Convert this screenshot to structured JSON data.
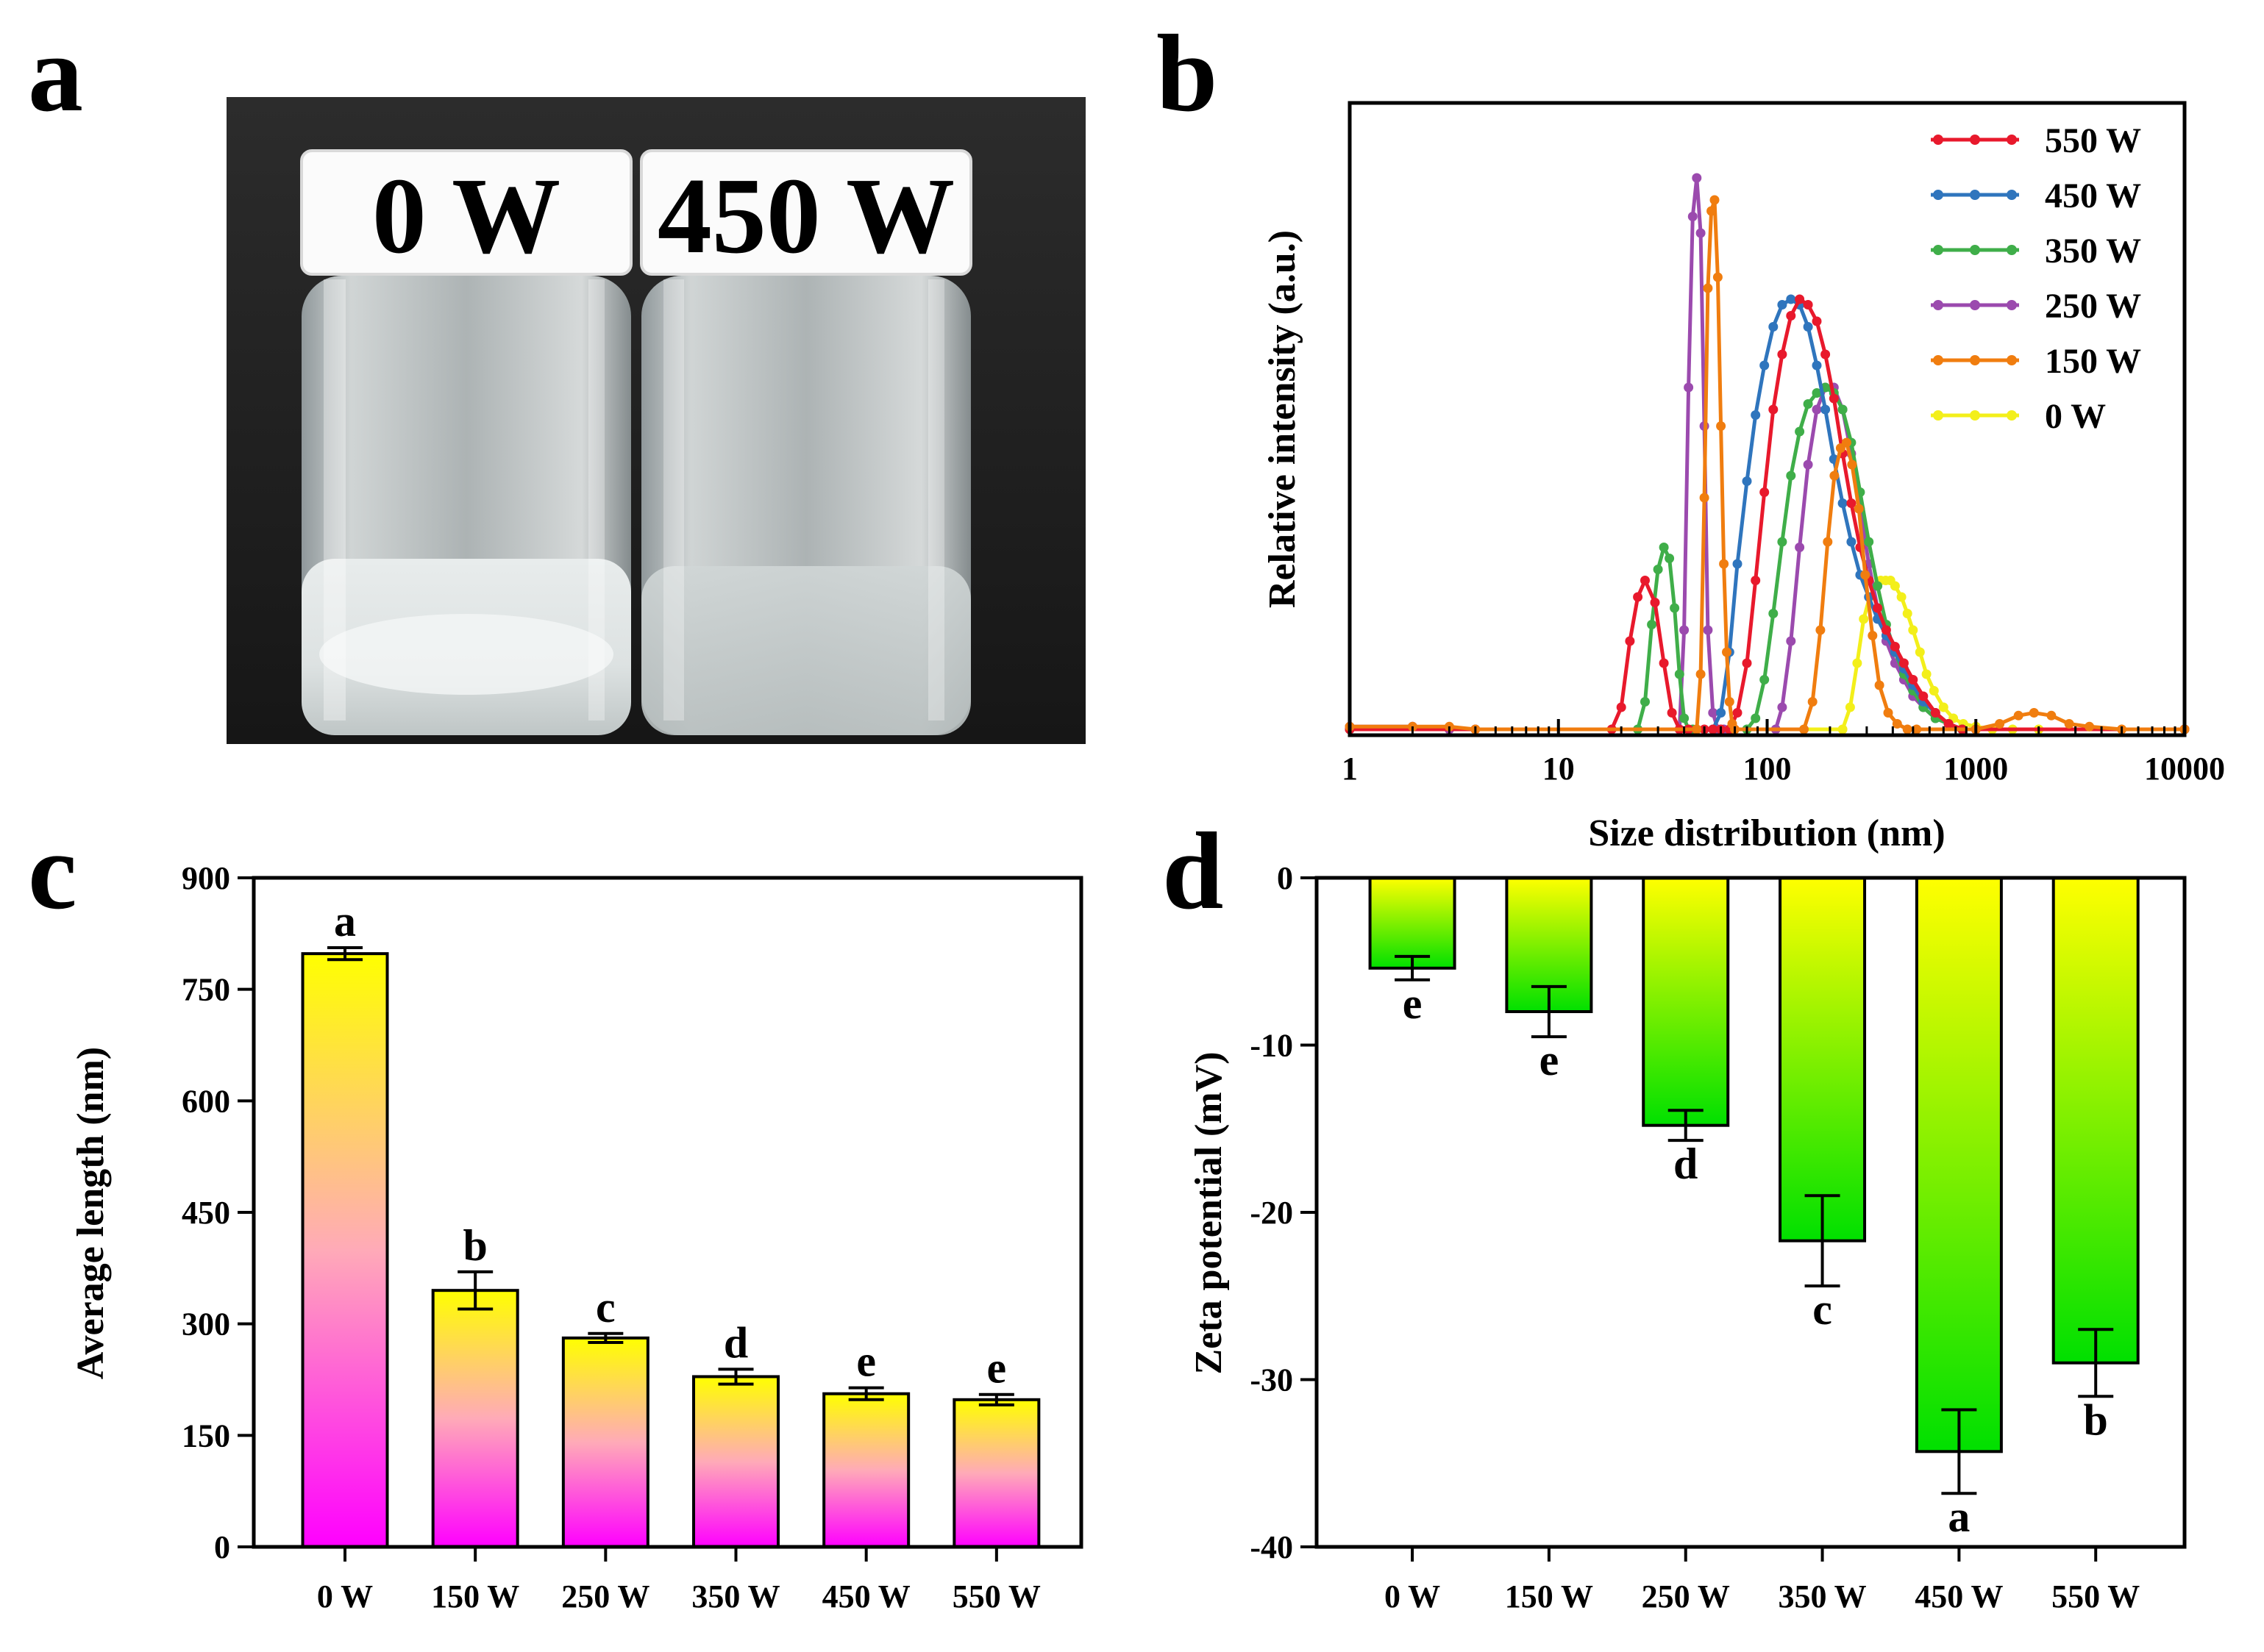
{
  "panels": [
    {
      "label": "a"
    },
    {
      "label": "b"
    },
    {
      "label": "c"
    },
    {
      "label": "d"
    }
  ],
  "photo": {
    "left_cap_label": "0 W",
    "right_cap_label": "450 W"
  },
  "chart_data": [
    {
      "id": "b",
      "type": "line",
      "xscale": "log",
      "xlabel": "Size distribution (nm)",
      "ylabel": "Relative intensity (a.u.)",
      "xlim": [
        1,
        10000
      ],
      "ylim": [
        0,
        1.0
      ],
      "xticks": [
        "1",
        "10",
        "100",
        "1000",
        "10000"
      ],
      "legend_position": "top-right",
      "series": [
        {
          "name": "550 W",
          "color": "#e8192c",
          "x": [
            1,
            18,
            20,
            22,
            24,
            26,
            29,
            32,
            35,
            38,
            42,
            46,
            50,
            55,
            60,
            66,
            72,
            80,
            88,
            97,
            107,
            118,
            130,
            143,
            157,
            173,
            190,
            209,
            230,
            253,
            279,
            307,
            338,
            372,
            410,
            452,
            500,
            560,
            640,
            740,
            860,
            1000,
            10000
          ],
          "y": [
            0,
            0,
            0.04,
            0.16,
            0.24,
            0.27,
            0.23,
            0.12,
            0.03,
            0,
            0,
            0,
            0,
            0,
            0,
            0,
            0.03,
            0.12,
            0.27,
            0.43,
            0.58,
            0.68,
            0.75,
            0.78,
            0.77,
            0.74,
            0.68,
            0.6,
            0.5,
            0.41,
            0.33,
            0.27,
            0.22,
            0.18,
            0.15,
            0.12,
            0.09,
            0.06,
            0.03,
            0.01,
            0,
            0,
            0
          ]
        },
        {
          "name": "450 W",
          "color": "#2f75bd",
          "x": [
            1,
            55,
            60,
            66,
            72,
            80,
            88,
            97,
            107,
            118,
            130,
            143,
            157,
            173,
            190,
            209,
            230,
            253,
            279,
            307,
            338,
            372,
            410,
            452,
            500,
            560,
            640,
            740,
            860,
            1000,
            10000
          ],
          "y": [
            0,
            0,
            0.03,
            0.14,
            0.3,
            0.45,
            0.57,
            0.66,
            0.73,
            0.77,
            0.78,
            0.77,
            0.73,
            0.66,
            0.58,
            0.49,
            0.41,
            0.34,
            0.28,
            0.24,
            0.2,
            0.17,
            0.14,
            0.11,
            0.08,
            0.05,
            0.03,
            0.01,
            0,
            0,
            0
          ]
        },
        {
          "name": "350 W",
          "color": "#3fae49",
          "x": [
            1,
            24,
            26,
            28,
            30,
            32,
            34,
            36,
            38,
            40,
            42,
            44,
            80,
            88,
            97,
            107,
            118,
            130,
            143,
            157,
            173,
            190,
            209,
            230,
            253,
            279,
            307,
            338,
            372,
            410,
            452,
            500,
            560,
            640,
            740,
            860,
            1000,
            10000
          ],
          "y": [
            0,
            0,
            0.05,
            0.19,
            0.29,
            0.33,
            0.31,
            0.22,
            0.1,
            0.02,
            0,
            0,
            0,
            0.02,
            0.09,
            0.21,
            0.34,
            0.46,
            0.54,
            0.59,
            0.61,
            0.62,
            0.61,
            0.58,
            0.52,
            0.43,
            0.34,
            0.26,
            0.19,
            0.14,
            0.1,
            0.07,
            0.04,
            0.02,
            0.01,
            0,
            0,
            0
          ]
        },
        {
          "name": "250 W",
          "color": "#9b4aae",
          "x": [
            1,
            2,
            3,
            4,
            38,
            40,
            42,
            44,
            46,
            48,
            50,
            52,
            55,
            58,
            62,
            110,
            118,
            130,
            143,
            157,
            173,
            190,
            209,
            230,
            253,
            279,
            307,
            338,
            372,
            410,
            452,
            500,
            560,
            640,
            740,
            860,
            1000,
            10000
          ],
          "y": [
            0.005,
            0.005,
            0,
            0,
            0,
            0.18,
            0.62,
            0.93,
            1.0,
            0.9,
            0.55,
            0.18,
            0.03,
            0,
            0,
            0,
            0.04,
            0.16,
            0.33,
            0.48,
            0.58,
            0.62,
            0.62,
            0.58,
            0.5,
            0.4,
            0.3,
            0.22,
            0.16,
            0.12,
            0.09,
            0.06,
            0.04,
            0.02,
            0.01,
            0,
            0,
            0
          ]
        },
        {
          "name": "150 W",
          "color": "#f07d0f",
          "x": [
            1,
            2,
            3,
            4,
            46,
            48,
            50,
            52,
            54,
            56,
            58,
            60,
            62,
            64,
            66,
            68,
            70,
            150,
            165,
            180,
            195,
            210,
            225,
            240,
            255,
            275,
            295,
            320,
            345,
            380,
            420,
            470,
            520,
            1000,
            1300,
            1600,
            1900,
            2300,
            2800,
            3500,
            5000,
            10000
          ],
          "y": [
            0.005,
            0.005,
            0.005,
            0,
            0,
            0.1,
            0.42,
            0.8,
            0.94,
            0.96,
            0.82,
            0.55,
            0.3,
            0.14,
            0.05,
            0.01,
            0,
            0,
            0.05,
            0.18,
            0.34,
            0.46,
            0.51,
            0.52,
            0.48,
            0.4,
            0.28,
            0.17,
            0.08,
            0.03,
            0.01,
            0,
            0,
            0,
            0.01,
            0.025,
            0.03,
            0.025,
            0.01,
            0.005,
            0,
            0
          ]
        },
        {
          "name": "0 W",
          "color": "#f3ef1a",
          "x": [
            1,
            230,
            250,
            270,
            290,
            310,
            330,
            350,
            370,
            390,
            410,
            440,
            470,
            500,
            540,
            580,
            630,
            700,
            780,
            870,
            1000,
            1200,
            1500,
            2000,
            10000
          ],
          "y": [
            0,
            0,
            0.04,
            0.12,
            0.2,
            0.24,
            0.26,
            0.27,
            0.27,
            0.27,
            0.26,
            0.24,
            0.21,
            0.18,
            0.14,
            0.1,
            0.07,
            0.04,
            0.02,
            0.01,
            0.005,
            0,
            0,
            0,
            0
          ]
        }
      ]
    },
    {
      "id": "c",
      "type": "bar",
      "ylabel": "Average length (nm)",
      "xlabel": "",
      "ylim": [
        0,
        900
      ],
      "yticks": [
        "0",
        "150",
        "300",
        "450",
        "600",
        "750",
        "900"
      ],
      "categories": [
        "0 W",
        "150 W",
        "250 W",
        "350 W",
        "450 W",
        "550 W"
      ],
      "values": [
        798,
        345,
        281,
        229,
        206,
        198
      ],
      "errors": [
        8,
        25,
        6,
        10,
        8,
        7
      ],
      "letters": [
        "a",
        "b",
        "c",
        "d",
        "e",
        "e"
      ],
      "gradient_top": "#ffff00",
      "gradient_mid": "#ffaab8",
      "gradient_bottom": "#ff00ff"
    },
    {
      "id": "d",
      "type": "bar",
      "ylabel": "Zeta potential (mV)",
      "xlabel": "",
      "ylim": [
        -40,
        0
      ],
      "yticks": [
        "0",
        "-10",
        "-20",
        "-30",
        "-40"
      ],
      "categories": [
        "0 W",
        "150 W",
        "250 W",
        "350 W",
        "450 W",
        "550 W"
      ],
      "values": [
        -5.4,
        -8.0,
        -14.8,
        -21.7,
        -34.3,
        -29.0
      ],
      "errors": [
        0.7,
        1.5,
        0.9,
        2.7,
        2.5,
        2.0
      ],
      "letters": [
        "e",
        "e",
        "d",
        "c",
        "a",
        "b"
      ],
      "gradient_top": "#ffff00",
      "gradient_bottom": "#00e000"
    }
  ]
}
